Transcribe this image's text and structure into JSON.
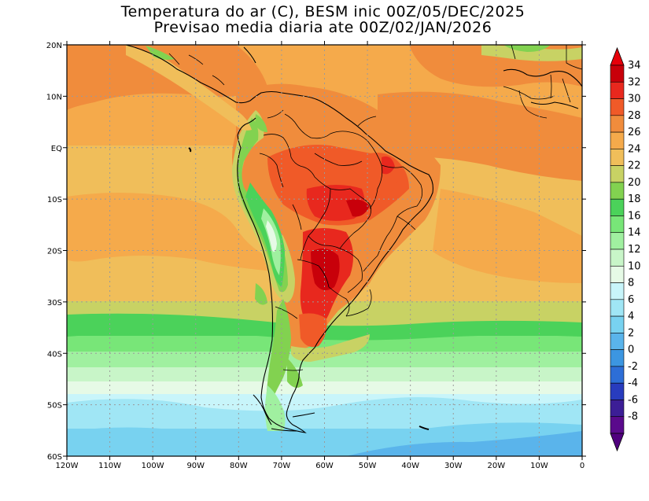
{
  "map": {
    "title_line1": "Temperatura do ar (C), BESM inic 00Z/05/DEC/2025",
    "title_line2": "Previsao media diaria ate 00Z/02/JAN/2026",
    "lat_labels": [
      "20N",
      "10N",
      "EQ",
      "10S",
      "20S",
      "30S",
      "40S",
      "50S",
      "60S"
    ],
    "lon_labels": [
      "120W",
      "110W",
      "100W",
      "90W",
      "80W",
      "70W",
      "60W",
      "50W",
      "40W",
      "30W",
      "20W",
      "10W",
      "0"
    ],
    "extent": {
      "lon_min": -120,
      "lon_max": 0,
      "lat_min": -60,
      "lat_max": 20
    }
  },
  "colorbar": {
    "labels": [
      "34",
      "32",
      "30",
      "28",
      "26",
      "24",
      "22",
      "20",
      "18",
      "16",
      "14",
      "12",
      "10",
      "8",
      "6",
      "4",
      "2",
      "0",
      "-2",
      "-4",
      "-6",
      "-8"
    ],
    "colors": [
      "#c8000a",
      "#e8281e",
      "#f05a28",
      "#f08c3c",
      "#f5aa4b",
      "#f0be5a",
      "#c8d264",
      "#82d250",
      "#4bd25a",
      "#78e678",
      "#a0f0a0",
      "#c8f5c8",
      "#e6fae6",
      "#c8f5fa",
      "#a0e6f5",
      "#78d2f0",
      "#5ab4eb",
      "#3c96e1",
      "#2d6ed7",
      "#283cbe",
      "#3c1e96",
      "#5a0a8c"
    ],
    "top_color": "#e6000a",
    "bottom_color": "#50007e"
  }
}
